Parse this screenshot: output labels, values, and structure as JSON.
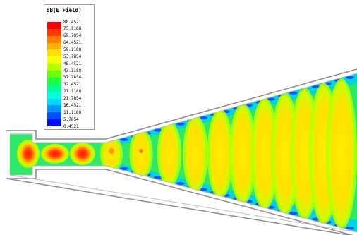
{
  "legend": {
    "title": "dB(E Field)",
    "ticks": [
      "80.4521",
      "75.1188",
      "69.7854",
      "64.4521",
      "59.1188",
      "53.7854",
      "48.4521",
      "43.1188",
      "37.7854",
      "32.4521",
      "27.1188",
      "21.7854",
      "16.4521",
      "11.1188",
      "5.7854",
      "0.4521"
    ],
    "colors": [
      "#ff0000",
      "#ff3a00",
      "#ff7a00",
      "#ffb000",
      "#ffe000",
      "#f4ff00",
      "#b8ff00",
      "#6cff00",
      "#20ff40",
      "#00ff90",
      "#00ffd8",
      "#00d8ff",
      "#0096ff",
      "#0050ff",
      "#0010ff"
    ]
  },
  "colors": {
    "background": "#ffffff",
    "outline": "#8c8c8c",
    "field_base": "#2fe86a",
    "lobe_yellow": "#ffe600",
    "lobe_red": "#ff2a00",
    "edge_blue": "#1a3cff",
    "edge_cyan": "#00e2e6"
  }
}
